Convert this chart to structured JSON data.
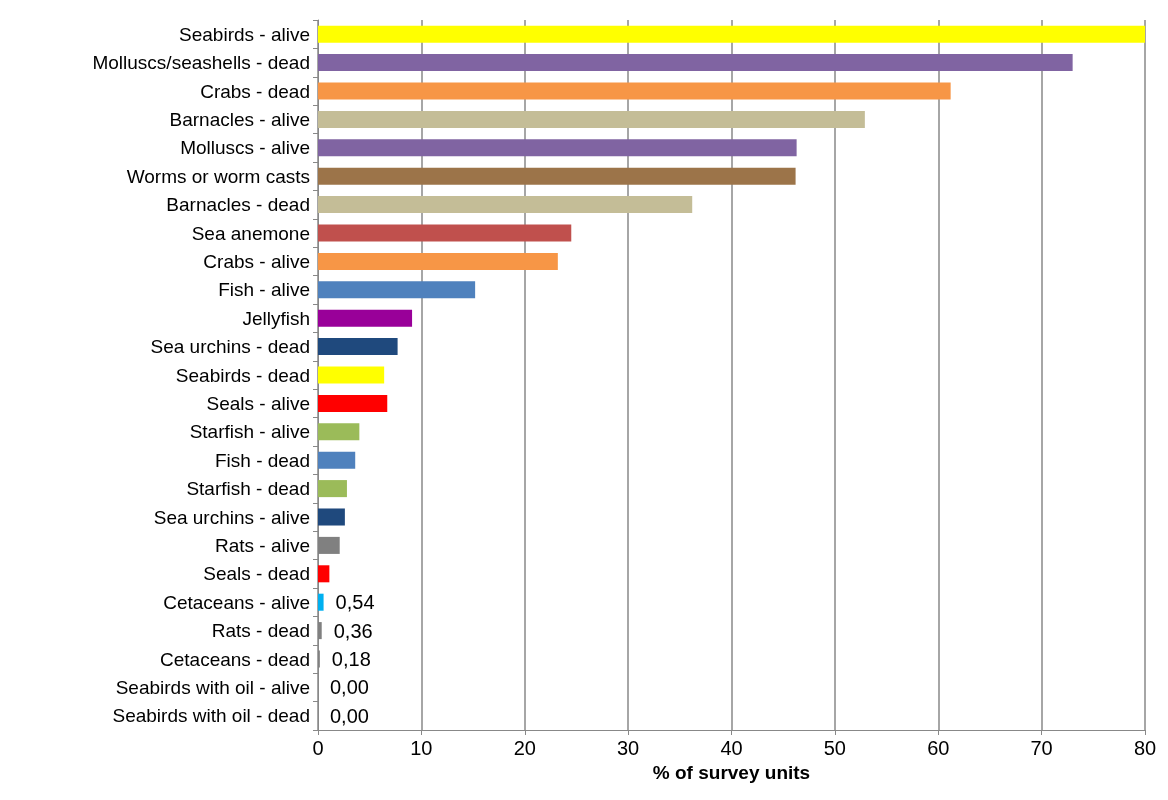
{
  "chart_data": {
    "type": "bar",
    "orientation": "horizontal",
    "xlabel": "% of survey units",
    "categories": [
      "Seabirds - alive",
      "Molluscs/seashells - dead",
      "Crabs - dead",
      "Barnacles - alive",
      "Molluscs - alive",
      "Worms or worm casts",
      "Barnacles - dead",
      "Sea anemone",
      "Crabs - alive",
      "Fish - alive",
      "Jellyfish",
      "Sea urchins - dead",
      "Seabirds - dead",
      "Seals - alive",
      "Starfish - alive",
      "Fish - dead",
      "Starfish - dead",
      "Sea urchins - alive",
      "Rats - alive",
      "Seals - dead",
      "Cetaceans - alive",
      "Rats - dead",
      "Cetaceans - dead",
      "Seabirds with oil - alive",
      "Seabirds with oil - dead"
    ],
    "values": [
      80,
      73,
      61.2,
      52.9,
      46.3,
      46.2,
      36.2,
      24.5,
      23.2,
      15.2,
      9.1,
      7.7,
      6.4,
      6.7,
      4.0,
      3.6,
      2.8,
      2.6,
      2.1,
      1.1,
      0.54,
      0.36,
      0.18,
      0,
      0
    ],
    "value_labels": [
      null,
      null,
      null,
      null,
      null,
      null,
      null,
      null,
      null,
      null,
      null,
      null,
      null,
      null,
      null,
      null,
      null,
      null,
      null,
      null,
      "0,54",
      "0,36",
      "0,18",
      "0,00",
      "0,00"
    ],
    "colors": [
      "#ffff00",
      "#8064a2",
      "#f79646",
      "#c4bd97",
      "#8064a2",
      "#9c7449",
      "#c4bd97",
      "#c0504d",
      "#f79646",
      "#4f81bd",
      "#990099",
      "#1f497d",
      "#ffff00",
      "#ff0000",
      "#9bbb59",
      "#4f81bd",
      "#9bbb59",
      "#1f497d",
      "#808080",
      "#ff0000",
      "#00b0f0",
      "#808080",
      "#808080",
      "#808080",
      "#808080"
    ],
    "xlim": [
      0,
      80
    ],
    "xticks": [
      0,
      10,
      20,
      30,
      40,
      50,
      60,
      70,
      80
    ],
    "grid": "x"
  }
}
